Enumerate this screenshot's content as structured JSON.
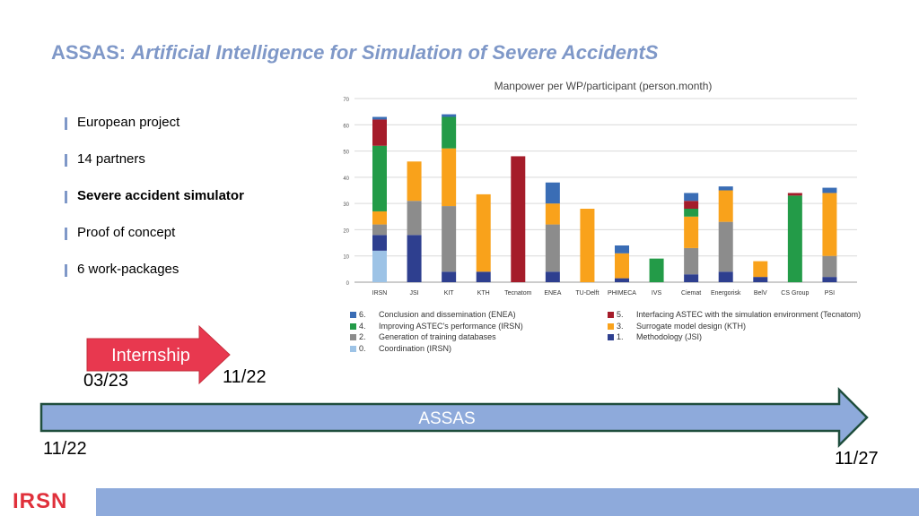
{
  "header": {
    "title_prefix": "ASSAS:",
    "title_italic": "Artificial Intelligence for Simulation of Severe AccidentS"
  },
  "bullets": [
    {
      "text": "European project",
      "bold": false
    },
    {
      "text": "14 partners",
      "bold": false
    },
    {
      "text": "Severe accident simulator",
      "bold": true
    },
    {
      "text": "Proof of concept",
      "bold": false
    },
    {
      "text": "6 work-packages",
      "bold": false
    }
  ],
  "chart_data": {
    "type": "bar",
    "stacked": true,
    "title": "Manpower per WP/participant (person.month)",
    "ylim": [
      0,
      70
    ],
    "yticks": [
      0,
      10,
      20,
      30,
      40,
      50,
      60,
      70
    ],
    "grid": true,
    "legend_placement": "bottom",
    "categories": [
      "IRSN",
      "JSI",
      "KIT",
      "KTH",
      "Tecnatom",
      "ENEA",
      "TU-Delft",
      "PHIMECA",
      "IVS",
      "Ciemat",
      "Energorisk",
      "BelV",
      "CS Group",
      "PSI"
    ],
    "series": [
      {
        "key": "0",
        "name": "Coordination (IRSN)",
        "color": "#9dc3e6",
        "values": [
          12,
          0,
          0,
          0,
          0,
          0,
          0,
          0,
          0,
          0,
          0,
          0,
          0,
          0
        ]
      },
      {
        "key": "1",
        "name": "Methodology (JSI)",
        "color": "#2e3f8f",
        "values": [
          6,
          18,
          4,
          4,
          0,
          4,
          0,
          1.5,
          0,
          3,
          4,
          2,
          0,
          2
        ]
      },
      {
        "key": "2",
        "name": "Generation of training databases",
        "color": "#8c8c8c",
        "values": [
          4,
          13,
          25,
          0,
          0,
          18,
          0,
          0,
          0,
          10,
          19,
          0,
          0,
          8
        ]
      },
      {
        "key": "3",
        "name": "Surrogate model design (KTH)",
        "color": "#f9a21b",
        "values": [
          5,
          15,
          22,
          29.5,
          0,
          8,
          28,
          9.5,
          0,
          12,
          12,
          6,
          0,
          24
        ]
      },
      {
        "key": "4",
        "name": "Improving ASTEC's performance (IRSN)",
        "color": "#239b48",
        "values": [
          25,
          0,
          12,
          0,
          0,
          0,
          0,
          0,
          9,
          3,
          0,
          0,
          33,
          0
        ]
      },
      {
        "key": "5",
        "name": "Interfacing ASTEC with the simulation environment (Tecnatom)",
        "color": "#a51c2a",
        "values": [
          10,
          0,
          0,
          0,
          48,
          0,
          0,
          0,
          0,
          3,
          0,
          0,
          1,
          0
        ]
      },
      {
        "key": "6",
        "name": "Conclusion and dissemination (ENEA)",
        "color": "#3a6db5",
        "values": [
          1,
          0,
          1,
          0,
          0,
          8,
          0,
          3,
          0,
          3,
          1.5,
          0,
          0,
          2
        ]
      }
    ],
    "legend_order": [
      "6",
      "5",
      "4",
      "3",
      "2",
      "1",
      "0"
    ]
  },
  "legend": [
    {
      "num": "6.",
      "label": "Conclusion and dissemination (ENEA)",
      "color": "#3a6db5"
    },
    {
      "num": "5.",
      "label": "Interfacing ASTEC with the simulation environment (Tecnatom)",
      "color": "#a51c2a"
    },
    {
      "num": "4.",
      "label": "Improving ASTEC's performance (IRSN)",
      "color": "#239b48"
    },
    {
      "num": "3.",
      "label": "Surrogate model design (KTH)",
      "color": "#f9a21b"
    },
    {
      "num": "2.",
      "label": "Generation of training databases",
      "color": "#8c8c8c"
    },
    {
      "num": "1.",
      "label": "Methodology (JSI)",
      "color": "#2e3f8f"
    },
    {
      "num": "0.",
      "label": "Coordination (IRSN)",
      "color": "#9dc3e6"
    }
  ],
  "timeline": {
    "internship_label": "Internship",
    "internship_start": "03/23",
    "internship_end": "11/22",
    "project_label": "ASSAS",
    "project_start": "11/22",
    "project_end": "11/27",
    "internship_color": "#e8384f",
    "project_color": "#8eaadb"
  },
  "footer": {
    "logo_text": "IRSN"
  }
}
